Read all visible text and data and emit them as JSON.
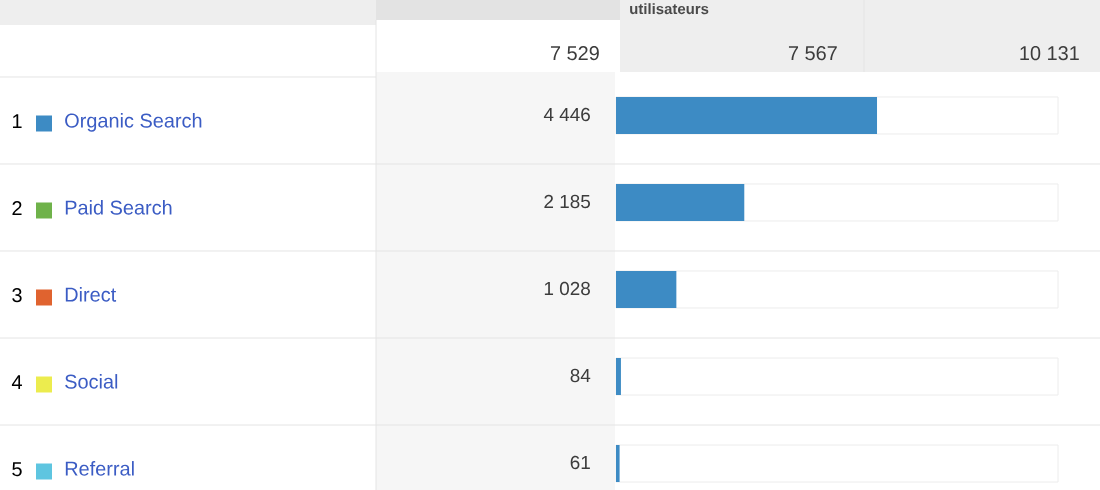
{
  "chart_data": {
    "type": "bar",
    "orientation": "horizontal",
    "categories": [
      "Organic Search",
      "Paid Search",
      "Direct",
      "Social",
      "Referral"
    ],
    "values": [
      4446,
      2185,
      1028,
      84,
      61
    ],
    "value_labels": [
      "4 446",
      "2 185",
      "1 028",
      "84",
      "61"
    ],
    "color": "#3d8bc4",
    "xlim": [
      0,
      7529
    ],
    "tick_labels": "y",
    "annotations": [
      "7 529",
      "utilisateurs",
      "7 567",
      "10 131",
      "1",
      "2",
      "3",
      "4",
      "5"
    ]
  }
}
